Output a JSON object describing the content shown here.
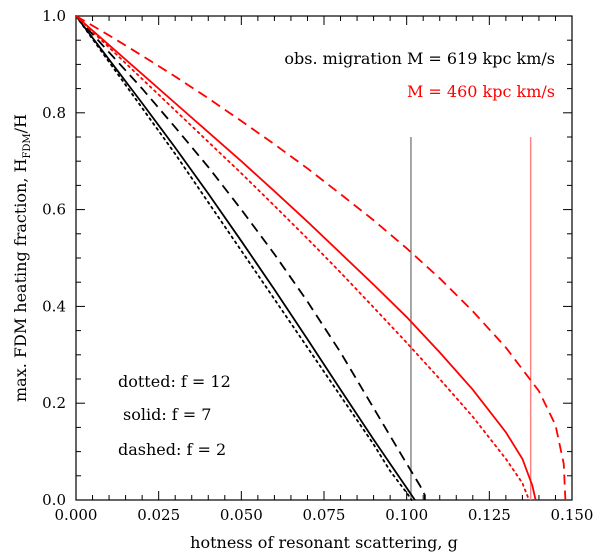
{
  "chart_data": {
    "type": "line",
    "xlabel": "hotness of resonant scattering, g",
    "ylabel_main": "max. FDM heating fraction,  H",
    "ylabel_sub": "FDM",
    "ylabel_tail": "/H",
    "xlim": [
      0.0,
      0.15
    ],
    "ylim": [
      0.0,
      1.0
    ],
    "xticks": [
      0.0,
      0.025,
      0.05,
      0.075,
      0.1,
      0.125,
      0.15
    ],
    "xtick_labels": [
      "0.000",
      "0.025",
      "0.050",
      "0.075",
      "0.100",
      "0.125",
      "0.150"
    ],
    "yticks": [
      0.0,
      0.2,
      0.4,
      0.6,
      0.8,
      1.0
    ],
    "ytick_labels": [
      "0.0",
      "0.2",
      "0.4",
      "0.6",
      "0.8",
      "1.0"
    ],
    "grid": false,
    "annotations": {
      "obs_black": "obs. migration M = 619 kpc km/s",
      "obs_red": "M = 460 kpc km/s",
      "dotted": "dotted: f = 12",
      "solid": "solid: f = 7",
      "dashed": "dashed: f = 2"
    },
    "colors": {
      "black": "#000000",
      "red": "#ff0000",
      "grey_line": "#808080",
      "pink_line": "#ff8080"
    },
    "vlines": [
      {
        "x": 0.1013,
        "y_top": 0.75,
        "color": "#808080"
      },
      {
        "x": 0.1375,
        "y_top": 0.75,
        "color": "#ff8080"
      }
    ],
    "series": [
      {
        "color": "#000000",
        "dash": "dotted",
        "x": [
          0,
          0.01,
          0.02,
          0.03,
          0.04,
          0.05,
          0.06,
          0.07,
          0.08,
          0.09,
          0.095,
          0.1,
          0.1015
        ],
        "y": [
          1.0,
          0.905,
          0.81,
          0.715,
          0.615,
          0.515,
          0.415,
          0.315,
          0.215,
          0.115,
          0.06,
          0.015,
          0.0
        ]
      },
      {
        "color": "#000000",
        "dash": "solid",
        "x": [
          0,
          0.01,
          0.02,
          0.03,
          0.04,
          0.05,
          0.06,
          0.07,
          0.08,
          0.09,
          0.095,
          0.1,
          0.102,
          0.1025
        ],
        "y": [
          1.0,
          0.91,
          0.82,
          0.728,
          0.633,
          0.535,
          0.435,
          0.332,
          0.228,
          0.125,
          0.075,
          0.025,
          0.005,
          0.0
        ]
      },
      {
        "color": "#000000",
        "dash": "dashed",
        "x": [
          0,
          0.01,
          0.02,
          0.03,
          0.04,
          0.05,
          0.06,
          0.07,
          0.08,
          0.09,
          0.1,
          0.104,
          0.1055,
          0.1055
        ],
        "y": [
          1.0,
          0.925,
          0.85,
          0.77,
          0.688,
          0.6,
          0.508,
          0.41,
          0.305,
          0.19,
          0.075,
          0.03,
          0.01,
          0.0
        ]
      },
      {
        "color": "#ff0000",
        "dash": "dotted",
        "x": [
          0,
          0.01,
          0.02,
          0.03,
          0.04,
          0.05,
          0.06,
          0.07,
          0.08,
          0.09,
          0.1,
          0.11,
          0.12,
          0.13,
          0.135,
          0.137
        ],
        "y": [
          1.0,
          0.935,
          0.87,
          0.805,
          0.74,
          0.675,
          0.608,
          0.54,
          0.47,
          0.398,
          0.325,
          0.25,
          0.172,
          0.085,
          0.035,
          0.0
        ]
      },
      {
        "color": "#ff0000",
        "dash": "solid",
        "x": [
          0,
          0.01,
          0.02,
          0.03,
          0.04,
          0.05,
          0.06,
          0.07,
          0.08,
          0.09,
          0.1,
          0.11,
          0.12,
          0.13,
          0.135,
          0.138,
          0.139
        ],
        "y": [
          1.0,
          0.94,
          0.88,
          0.82,
          0.76,
          0.7,
          0.638,
          0.575,
          0.51,
          0.445,
          0.378,
          0.305,
          0.228,
          0.14,
          0.085,
          0.03,
          0.0
        ]
      },
      {
        "color": "#ff0000",
        "dash": "dashed",
        "x": [
          0,
          0.01,
          0.02,
          0.03,
          0.04,
          0.05,
          0.06,
          0.07,
          0.08,
          0.09,
          0.1,
          0.11,
          0.12,
          0.13,
          0.14,
          0.145,
          0.1475,
          0.148
        ],
        "y": [
          1.0,
          0.96,
          0.918,
          0.875,
          0.83,
          0.783,
          0.735,
          0.685,
          0.632,
          0.578,
          0.52,
          0.458,
          0.39,
          0.315,
          0.225,
          0.155,
          0.075,
          0.0
        ]
      }
    ]
  }
}
